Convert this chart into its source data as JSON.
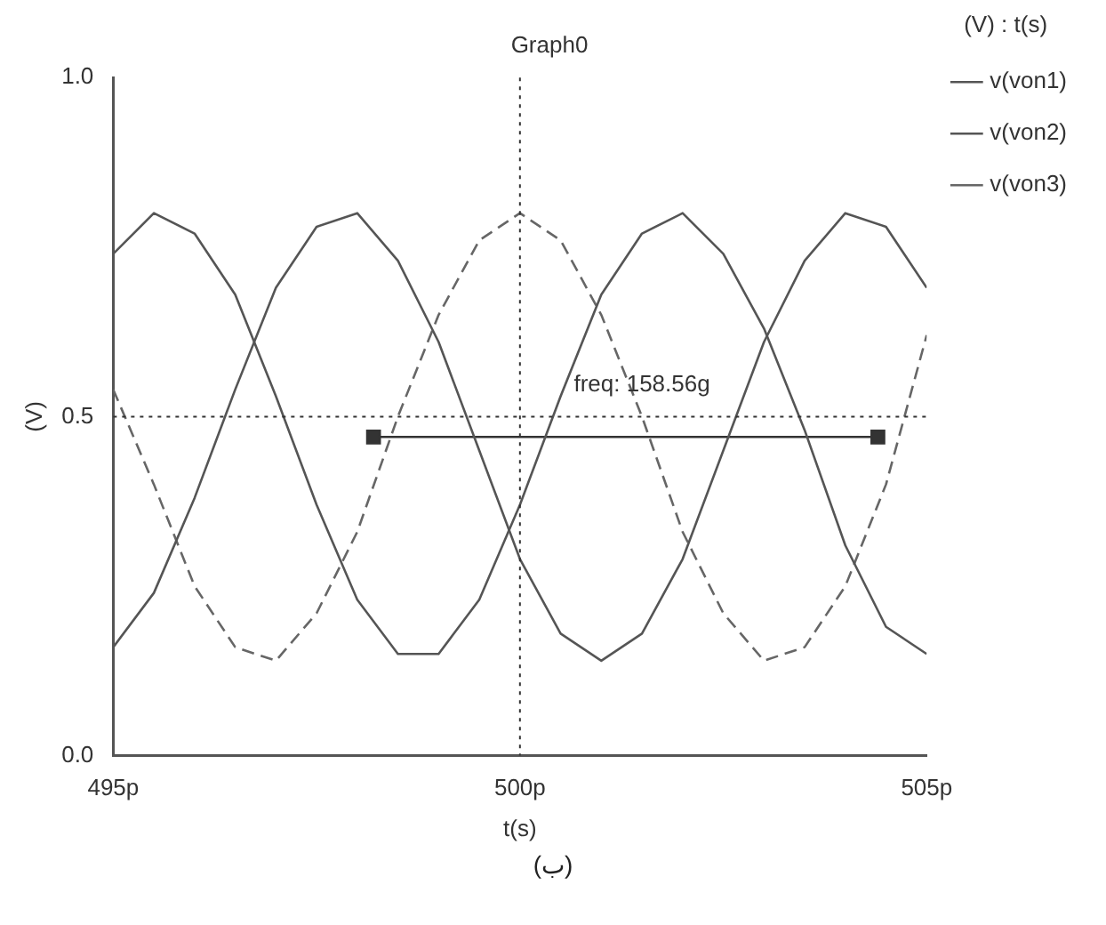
{
  "chart_data": {
    "type": "line",
    "title": "Graph0",
    "xlabel": "t(s)",
    "ylabel": "(V)",
    "legend_title": "(V) : t(s)",
    "legend": "right",
    "grid": false,
    "marker": "none",
    "x": [
      495,
      495.5,
      496,
      496.5,
      497,
      497.5,
      498,
      498.5,
      499,
      499.5,
      500,
      500.5,
      501,
      501.5,
      502,
      502.5,
      503,
      503.5,
      504,
      504.5,
      505
    ],
    "xlim": [
      495,
      505
    ],
    "xticks": [
      {
        "value": 495,
        "label": "495p"
      },
      {
        "value": 500,
        "label": "500p"
      },
      {
        "value": 505,
        "label": "505p"
      }
    ],
    "ylim": [
      0,
      1
    ],
    "yticks": [
      {
        "value": 0,
        "label": "0.0"
      },
      {
        "value": 0.5,
        "label": "0.5"
      },
      {
        "value": 1,
        "label": "1.0"
      }
    ],
    "series": [
      {
        "name": "v(von1)",
        "color": "#555555",
        "line_style": "solid",
        "values": [
          0.74,
          0.8,
          0.77,
          0.68,
          0.53,
          0.37,
          0.23,
          0.15,
          0.15,
          0.23,
          0.37,
          0.53,
          0.68,
          0.77,
          0.8,
          0.74,
          0.63,
          0.48,
          0.31,
          0.19,
          0.15
        ]
      },
      {
        "name": "v(von2)",
        "color": "#555555",
        "line_style": "solid",
        "values": [
          0.16,
          0.24,
          0.38,
          0.54,
          0.69,
          0.78,
          0.8,
          0.73,
          0.61,
          0.45,
          0.29,
          0.18,
          0.14,
          0.18,
          0.29,
          0.45,
          0.61,
          0.73,
          0.8,
          0.78,
          0.69
        ]
      },
      {
        "name": "v(von3)",
        "color": "#666666",
        "line_style": "dashed",
        "values": [
          0.54,
          0.4,
          0.25,
          0.16,
          0.14,
          0.21,
          0.33,
          0.5,
          0.65,
          0.76,
          0.8,
          0.76,
          0.65,
          0.5,
          0.33,
          0.21,
          0.14,
          0.16,
          0.25,
          0.4,
          0.62
        ]
      },
      {
        "type": "line",
        "color": "#333333",
        "marker": "square",
        "line_style": "solid",
        "x": [
          498.2,
          504.4
        ],
        "values": [
          0.47,
          0.47
        ]
      }
    ],
    "ref_lines": [
      {
        "axis": "x",
        "value": 500,
        "line_style": "dotted",
        "color": "#333333"
      },
      {
        "axis": "y",
        "value": 0.5,
        "line_style": "dotted",
        "color": "#333333"
      }
    ],
    "annotations": [
      {
        "text": "freq: 158.56g",
        "x": 501.5,
        "y": 0.53
      },
      "(ب)"
    ]
  }
}
